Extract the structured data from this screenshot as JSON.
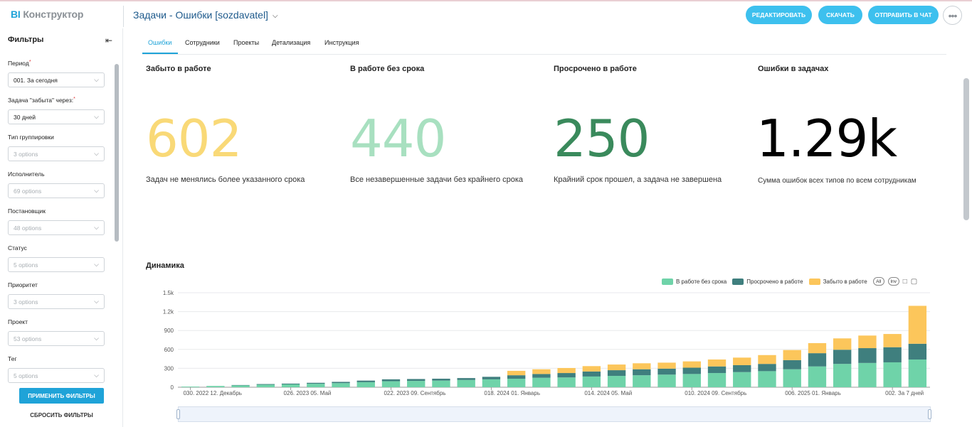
{
  "header": {
    "logo_bi": "BI",
    "logo_rest": "Конструктор",
    "dashboard_title": "Задачи - Ошибки [sozdavatel]",
    "buttons": {
      "edit": "РЕДАКТИРОВАТЬ",
      "download": "СКАЧАТЬ",
      "send": "ОТПРАВИТЬ В ЧАТ"
    },
    "more": "•••"
  },
  "filters": {
    "title": "Фильтры",
    "items": [
      {
        "label": "Период",
        "required": true,
        "value": "001. За сегодня",
        "placeholder": false
      },
      {
        "label": "Задача \"забыта\" через:",
        "required": true,
        "value": "30 дней",
        "placeholder": false
      },
      {
        "label": "Тип группировки",
        "required": false,
        "value": "3 options",
        "placeholder": true
      },
      {
        "label": "Исполнитель",
        "required": false,
        "value": "69 options",
        "placeholder": true
      },
      {
        "label": "Постановщик",
        "required": false,
        "value": "48 options",
        "placeholder": true
      },
      {
        "label": "Статус",
        "required": false,
        "value": "5 options",
        "placeholder": true
      },
      {
        "label": "Приоритет",
        "required": false,
        "value": "3 options",
        "placeholder": true
      },
      {
        "label": "Проект",
        "required": false,
        "value": "53 options",
        "placeholder": true
      },
      {
        "label": "Тег",
        "required": false,
        "value": "5 options",
        "placeholder": true
      }
    ],
    "apply": "ПРИМЕНИТЬ ФИЛЬТРЫ",
    "reset": "СБРОСИТЬ ФИЛЬТРЫ"
  },
  "tabs": [
    "Ошибки",
    "Сотрудники",
    "Проекты",
    "Детализация",
    "Инструкция"
  ],
  "active_tab": "Ошибки",
  "kpis": [
    {
      "title": "Забыто в работе",
      "value": "602",
      "desc": "Задач не менялись более указанного срока",
      "color": "#f9d977"
    },
    {
      "title": "В работе без срока",
      "value": "440",
      "desc": "Все незавершенные задачи без крайнего срока",
      "color": "#a8e0c0"
    },
    {
      "title": "Просрочено в работе",
      "value": "250",
      "desc": "Крайний срок прошел, а задача не завершена",
      "color": "#3a8a5c"
    },
    {
      "title": "Ошибки в задачах",
      "value": "1.29k",
      "desc": "Сумма ошибок всех типов по всем сотрудникам",
      "color": "#000000"
    }
  ],
  "dynamics": {
    "title": "Динамика",
    "legend_controls": {
      "all": "All",
      "inv": "Inv"
    }
  },
  "chart_data": {
    "type": "bar",
    "stacked": true,
    "ylim": [
      0,
      1500
    ],
    "yticks": [
      "1.5k",
      "1.2k",
      "900",
      "600",
      "300",
      "0"
    ],
    "ytick_values": [
      1500,
      1200,
      900,
      600,
      300,
      0
    ],
    "xtick_labels": [
      "030. 2022 12. Декабрь",
      "026. 2023 05. Май",
      "022. 2023 09. Сентябрь",
      "018. 2024 01. Январь",
      "014. 2024 05. Май",
      "010. 2024 09. Сентябрь",
      "006. 2025 01. Январь",
      "002. За 7 дней"
    ],
    "xtick_indices": [
      0,
      4,
      8,
      12,
      16,
      20,
      24,
      28
    ],
    "series": [
      {
        "name": "В работе без срока",
        "color": "#6fd3a9",
        "values": [
          10,
          20,
          30,
          40,
          45,
          55,
          65,
          80,
          95,
          100,
          105,
          115,
          125,
          135,
          150,
          155,
          170,
          180,
          190,
          200,
          210,
          225,
          240,
          255,
          285,
          330,
          370,
          385,
          395,
          440
        ]
      },
      {
        "name": "Просрочено в работе",
        "color": "#3f7f7e",
        "values": [
          0,
          0,
          5,
          10,
          12,
          15,
          20,
          25,
          30,
          30,
          30,
          30,
          40,
          55,
          60,
          70,
          80,
          90,
          95,
          95,
          100,
          105,
          110,
          115,
          145,
          210,
          225,
          235,
          240,
          250
        ]
      },
      {
        "name": "Забыто в работе",
        "color": "#fcc65b",
        "values": [
          0,
          0,
          0,
          0,
          0,
          0,
          0,
          0,
          0,
          0,
          0,
          0,
          0,
          70,
          75,
          80,
          85,
          90,
          95,
          95,
          100,
          110,
          120,
          140,
          160,
          160,
          180,
          200,
          210,
          602
        ]
      }
    ]
  }
}
